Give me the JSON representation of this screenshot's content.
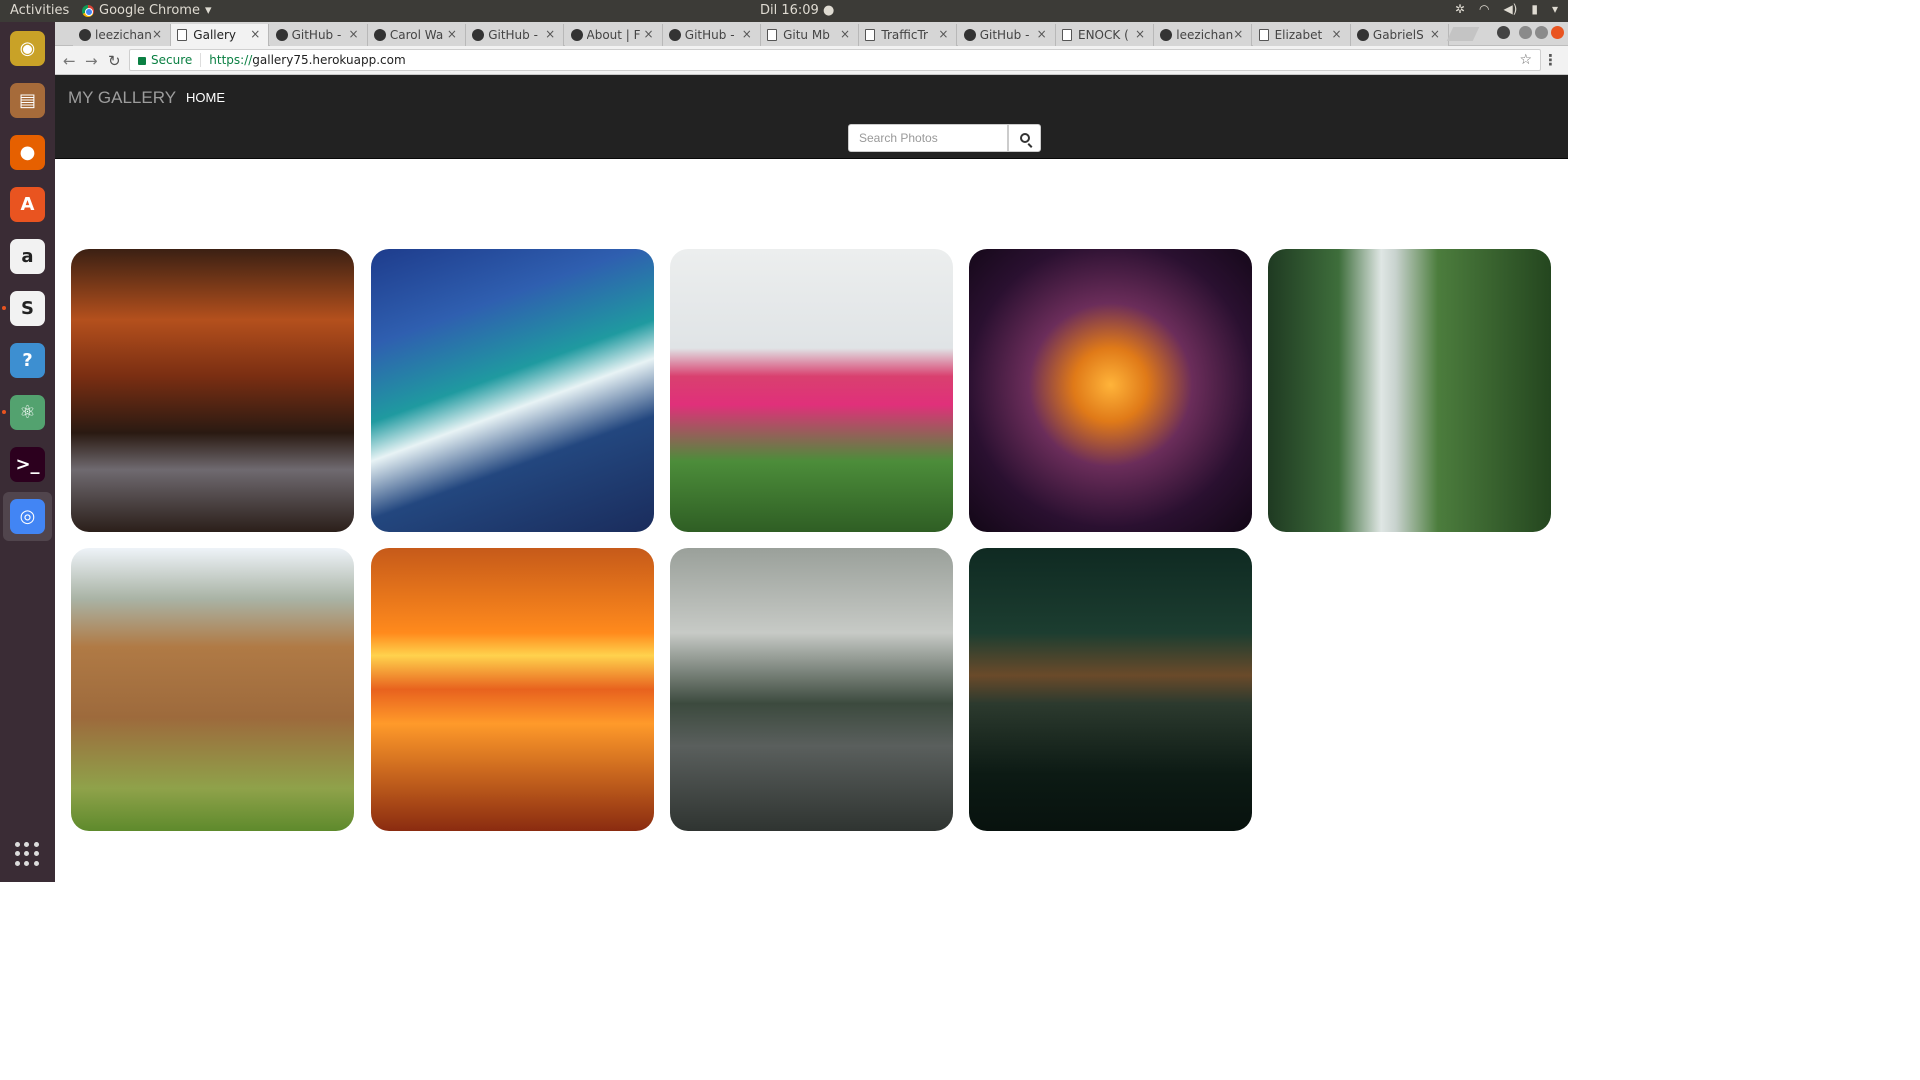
{
  "system": {
    "activities": "Activities",
    "app_name": "Google Chrome",
    "clock": "Dil 16:09"
  },
  "launcher": [
    {
      "name": "rhythmbox",
      "color": "#c9a227"
    },
    {
      "name": "files",
      "color": "#a66b3a"
    },
    {
      "name": "firefox",
      "color": "#e66000"
    },
    {
      "name": "software-center",
      "color": "#e95420"
    },
    {
      "name": "amazon",
      "color": "#f2f2f2"
    },
    {
      "name": "slack",
      "color": "#f2f2f2"
    },
    {
      "name": "help",
      "color": "#3d8fd1"
    },
    {
      "name": "atom",
      "color": "#53a26f"
    },
    {
      "name": "terminal",
      "color": "#2c001e"
    },
    {
      "name": "chrome",
      "color": "#4285f4"
    }
  ],
  "browser": {
    "tabs": [
      {
        "label": "leezichan",
        "icon": "github-icon",
        "active": false
      },
      {
        "label": "Gallery",
        "icon": "page-icon",
        "active": true
      },
      {
        "label": "GitHub -",
        "icon": "github-icon",
        "active": false
      },
      {
        "label": "Carol Wa",
        "icon": "terminal-icon",
        "active": false
      },
      {
        "label": "GitHub -",
        "icon": "github-icon",
        "active": false
      },
      {
        "label": "About | F",
        "icon": "user-icon",
        "active": false
      },
      {
        "label": "GitHub -",
        "icon": "github-icon",
        "active": false
      },
      {
        "label": "Gitu Mb",
        "icon": "page-icon",
        "active": false
      },
      {
        "label": "TrafficTr",
        "icon": "page-icon",
        "active": false
      },
      {
        "label": "GitHub -",
        "icon": "github-icon",
        "active": false
      },
      {
        "label": "ENOCK (",
        "icon": "page-icon",
        "active": false
      },
      {
        "label": "leezichan",
        "icon": "github-icon",
        "active": false
      },
      {
        "label": "Elizabet",
        "icon": "page-icon",
        "active": false
      },
      {
        "label": "GabrielS",
        "icon": "github-icon",
        "active": false
      }
    ],
    "secure_label": "Secure",
    "url_scheme": "https://",
    "url_host": "gallery75.herokuapp.com"
  },
  "site": {
    "brand": "MY GALLERY",
    "nav_home": "HOME",
    "search_placeholder": "Search Photos"
  },
  "photos": [
    {
      "name": "autumn-forest-road",
      "bg": "linear-gradient(180deg,#3b2013 0%,#b4501d 25%,#7a2e12 45%,#2a1a12 65%,#6f6a70 78%,#2b1f1a 100%)"
    },
    {
      "name": "surfer-wave",
      "bg": "linear-gradient(160deg,#1e3c8c 0%,#2f5fb0 25%,#1f9aa0 45%,#e8f3f5 55%,#23477f 70%,#1a2c5c 100%)"
    },
    {
      "name": "tulip-field",
      "bg": "linear-gradient(180deg,#eceeee 0%,#e0e4e6 35%,#d9406f 45%,#e0307a 55%,#4c8d3a 75%,#2f5e24 100%)"
    },
    {
      "name": "abstract-swirl",
      "bg": "radial-gradient(circle at 50% 48%,#ffb43a 0%,#e07a18 18%,#6b2d5a 40%,#2a1030 70%,#120716 100%)"
    },
    {
      "name": "waterfall",
      "bg": "linear-gradient(90deg,#1f3a22 0%,#3e6e3b 25%,#dfe6e4 40%,#c9d3cf 45%,#4c7d3d 60%,#24461f 100%)"
    },
    {
      "name": "elephants",
      "bg": "linear-gradient(180deg,#eef3f8 0%,#a9b3a5 18%,#b07a45 35%,#9d6a3c 60%,#8fa24a 85%,#5e8a2c 100%)"
    },
    {
      "name": "sunset-sea",
      "bg": "linear-gradient(180deg,#c65a1a 0%,#ff8a1c 30%,#ffd24d 38%,#e8621e 50%,#ff9a2a 62%,#8a2b10 100%)"
    },
    {
      "name": "misty-road",
      "bg": "linear-gradient(180deg,#9aa09a 0%,#c7cac6 30%,#3c4a3e 55%,#5a5f5d 70%,#2f3431 100%)"
    },
    {
      "name": "forest-lake",
      "bg": "linear-gradient(180deg,#0f2a22 0%,#1c3d30 30%,#6a4a2a 45%,#2c3a2e 55%,#0c1a14 80%,#08120e 100%)"
    }
  ]
}
